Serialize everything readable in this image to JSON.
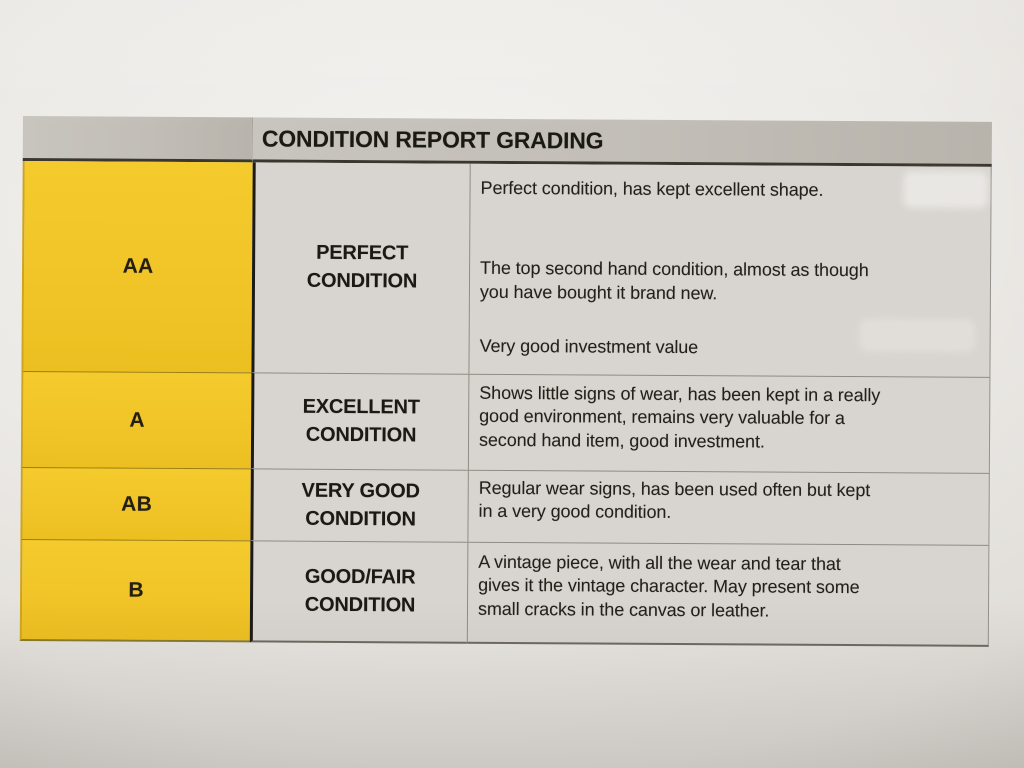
{
  "table": {
    "title": "CONDITION REPORT GRADING",
    "rows": [
      {
        "grade": "AA",
        "label": "PERFECT\nCONDITION",
        "paragraphs": [
          "Perfect condition, has kept excellent shape.",
          "The top second hand condition, almost as though\nyou have bought it brand new.",
          "Very good investment value"
        ]
      },
      {
        "grade": "A",
        "label": "EXCELLENT\nCONDITION",
        "paragraphs": [
          "Shows little signs of wear, has been kept in a really\ngood environment, remains very valuable for a\nsecond hand item, good investment."
        ]
      },
      {
        "grade": "AB",
        "label": "VERY GOOD\nCONDITION",
        "paragraphs": [
          "Regular wear signs, has been used often but kept\nin a very good condition."
        ]
      },
      {
        "grade": "B",
        "label": "GOOD/FAIR\nCONDITION",
        "paragraphs": [
          "A vintage piece, with all the wear and tear that\ngives it the vintage character. May present some\nsmall cracks in the canvas or leather."
        ]
      }
    ],
    "colors": {
      "grade_column_yellow": "#f1c528",
      "header_gray": "#c3bfb8",
      "cell_gray": "#d8d5d0",
      "paper": "#e8e5e1",
      "text": "#1d1b18"
    }
  }
}
